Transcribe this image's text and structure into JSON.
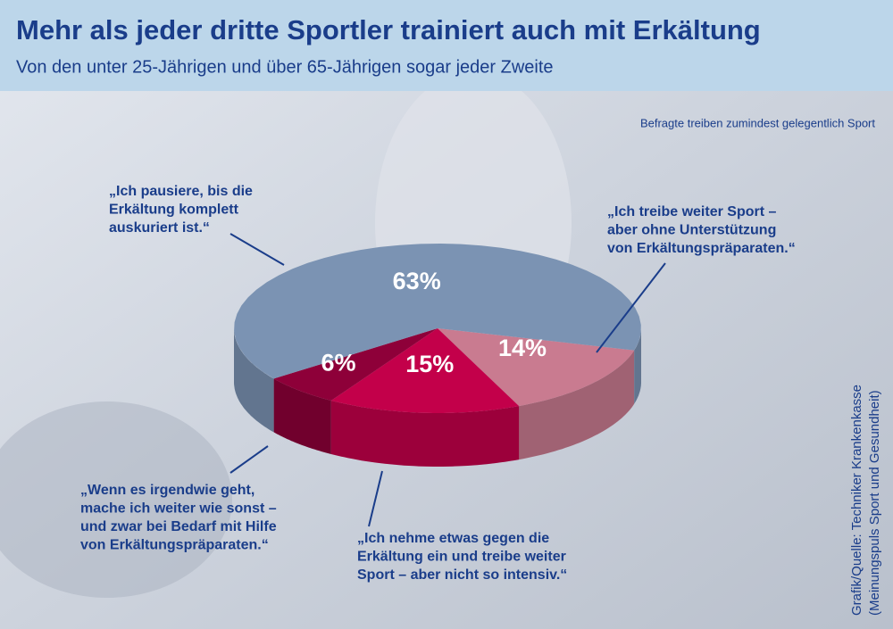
{
  "chart_data": {
    "type": "pie3d",
    "title": "Mehr als jeder dritte Sportler trainiert auch mit Erkältung",
    "subtitle": "Von den unter 25-Jährigen und über 65-Jährigen sogar jeder Zweite",
    "note": "Befragte treiben zumindest gelegentlich Sport",
    "source": [
      "Grafik/Quelle: Techniker Krankenkasse",
      "(Meinungspuls Sport und Gesundheit)"
    ],
    "categories": [
      [
        "„Ich treibe weiter Sport –",
        "aber ohne Unterstützung",
        "von Erkältungspräparaten.“"
      ],
      [
        "„Ich nehme etwas gegen die",
        "Erkältung ein und treibe weiter",
        "Sport – aber nicht so intensiv.“"
      ],
      [
        "„Wenn es irgendwie geht,",
        "mache ich weiter wie sonst –",
        "und zwar bei Bedarf mit Hilfe",
        "von Erkältungspräparaten.“"
      ],
      [
        "„Ich pausiere, bis die",
        "Erkältung komplett",
        "auskuriert ist.“"
      ]
    ],
    "values": [
      14,
      15,
      6,
      63
    ],
    "value_labels": [
      "14%",
      "15%",
      "6%",
      "63%"
    ],
    "colors": [
      "#c97b90",
      "#c3004a",
      "#8e0039",
      "#7b93b3"
    ]
  }
}
